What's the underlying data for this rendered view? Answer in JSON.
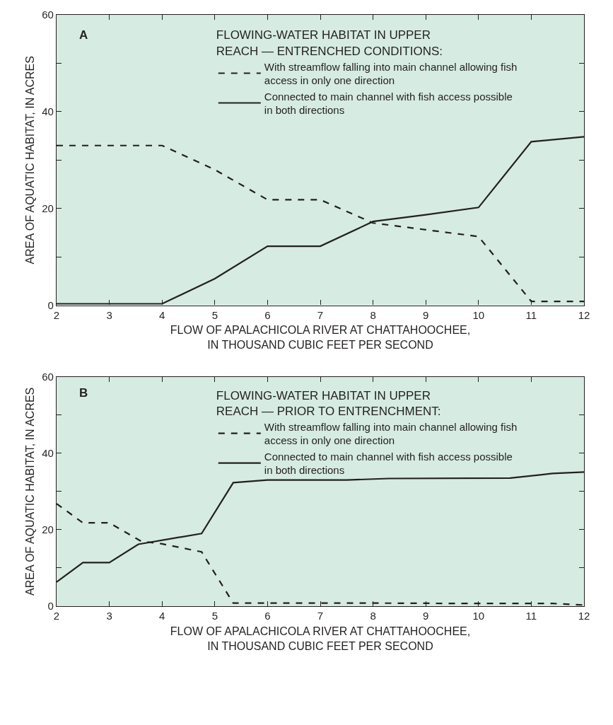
{
  "chart_data": [
    {
      "type": "line",
      "legend_title": "FLOWING-WATER HABITAT IN UPPER\nREACH — ENTRENCHED CONDITIONS:",
      "xlabel": "FLOW OF APALACHICOLA RIVER AT CHATTAHOOCHEE,\nIN THOUSAND CUBIC FEET PER SECOND",
      "ylabel": "AREA OF AQUATIC HABITAT, IN ACRES",
      "annotations": [
        "A"
      ],
      "legend": "top",
      "grid": false,
      "xlim": [
        2,
        12
      ],
      "xticks": [
        2,
        3,
        4,
        5,
        6,
        7,
        8,
        9,
        10,
        11,
        12
      ],
      "ylim": [
        0,
        60
      ],
      "yticks": [
        0,
        {
          "value": 10,
          "label": null
        },
        20,
        {
          "value": 30,
          "label": null
        },
        40,
        {
          "value": 50,
          "label": null
        },
        60
      ],
      "series": [
        {
          "name": "With streamflow falling into main channel allowing fish\naccess in only one direction",
          "color": "#231f20",
          "line_style": "dashed",
          "x": [
            2,
            4,
            5,
            6,
            7,
            8,
            10,
            11,
            12
          ],
          "values": [
            33,
            33,
            28,
            21.8,
            21.8,
            17,
            14.2,
            0.8,
            0.8
          ]
        },
        {
          "name": "Connected to main channel with fish access possible\nin both directions",
          "color": "#231f20",
          "line_style": "solid",
          "x": [
            2,
            4,
            5,
            6,
            7,
            8,
            9,
            10,
            11,
            12
          ],
          "values": [
            0.3,
            0.3,
            5.5,
            12.2,
            12.2,
            17.3,
            18.7,
            20.2,
            33.8,
            34.8
          ]
        }
      ]
    },
    {
      "type": "line",
      "legend_title": "FLOWING-WATER HABITAT IN UPPER\nREACH — PRIOR TO ENTRENCHMENT:",
      "xlabel": "FLOW OF APALACHICOLA RIVER AT CHATTAHOOCHEE,\nIN THOUSAND CUBIC FEET PER SECOND",
      "ylabel": "AREA OF AQUATIC HABITAT, IN ACRES",
      "annotations": [
        "B"
      ],
      "legend": "top",
      "grid": false,
      "xlim": [
        2,
        12
      ],
      "xticks": [
        2,
        3,
        4,
        5,
        6,
        7,
        8,
        9,
        10,
        11,
        12
      ],
      "ylim": [
        0,
        60
      ],
      "yticks": [
        0,
        {
          "value": 10,
          "label": null
        },
        20,
        {
          "value": 30,
          "label": null
        },
        40,
        {
          "value": 50,
          "label": null
        },
        60
      ],
      "series": [
        {
          "name": "With streamflow falling into main channel allowing fish\naccess in only one direction",
          "color": "#231f20",
          "line_style": "dashed",
          "x": [
            2,
            2.5,
            3,
            3.6,
            4,
            4.75,
            5.35,
            6,
            8,
            10,
            11.4,
            12
          ],
          "values": [
            26.8,
            21.8,
            21.8,
            17,
            16.3,
            14.2,
            0.8,
            0.8,
            0.8,
            0.7,
            0.7,
            0.3
          ]
        },
        {
          "name": "Connected to main channel with fish access possible\nin both directions",
          "color": "#231f20",
          "line_style": "solid",
          "x": [
            2,
            2.5,
            3,
            3.55,
            4.75,
            5.35,
            6,
            7.5,
            8.3,
            10.6,
            11.4,
            12
          ],
          "values": [
            6.3,
            11.4,
            11.4,
            16.2,
            19,
            32.3,
            33,
            33,
            33.4,
            33.5,
            34.7,
            35.1
          ]
        }
      ]
    }
  ]
}
